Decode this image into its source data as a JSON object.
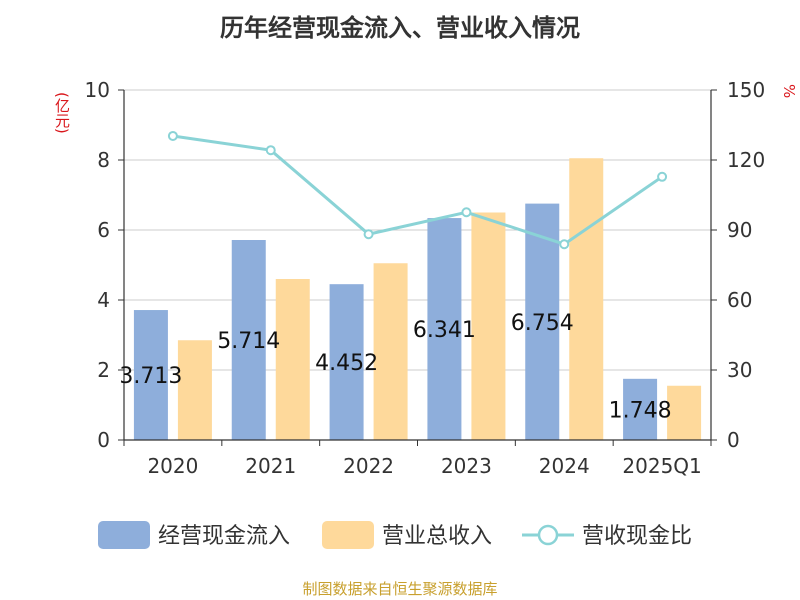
{
  "chart_data": {
    "type": "bar",
    "title": "历年经营现金流入、营业收入情况",
    "y_unit": "(亿元)",
    "y2_unit": "%",
    "categories": [
      "2020",
      "2021",
      "2022",
      "2023",
      "2024",
      "2025Q1"
    ],
    "ylim": [
      0,
      10
    ],
    "y_ticks": [
      "0",
      "2",
      "4",
      "6",
      "8",
      "10"
    ],
    "y2lim": [
      0,
      150
    ],
    "y2_ticks": [
      "0",
      "30",
      "60",
      "90",
      "120",
      "150"
    ],
    "series": [
      {
        "name": "经营现金流入",
        "type": "bar",
        "color": "#8eaedb",
        "values": [
          3.713,
          5.714,
          4.452,
          6.341,
          6.754,
          1.748
        ],
        "labels": [
          "3.713",
          "5.714",
          "4.452",
          "6.341",
          "6.754",
          "1.748"
        ]
      },
      {
        "name": "营业总收入",
        "type": "bar",
        "color": "#fed99b",
        "values": [
          2.85,
          4.6,
          5.05,
          6.5,
          8.05,
          1.55
        ]
      },
      {
        "name": "营收现金比",
        "type": "line",
        "axis": "right",
        "color": "#8ad3d6",
        "values": [
          130.3,
          124.2,
          88.2,
          97.6,
          83.9,
          112.8
        ]
      }
    ],
    "grid": true,
    "legend_position": "bottom"
  },
  "source": "制图数据来自恒生聚源数据库"
}
